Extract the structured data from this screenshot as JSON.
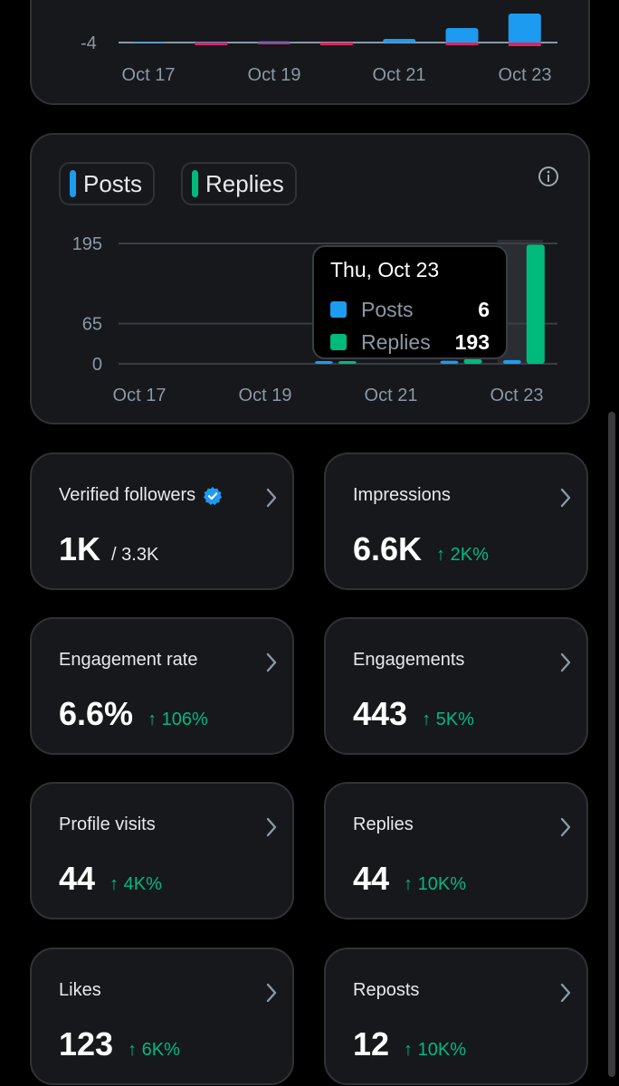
{
  "top_chart": {
    "y_tick": "-4",
    "x_labels": [
      "Oct 17",
      "Oct 19",
      "Oct 21",
      "Oct 23"
    ]
  },
  "activity_chart": {
    "legend": [
      {
        "label": "Posts",
        "color": "#1d9bf0"
      },
      {
        "label": "Replies",
        "color": "#00ba7c"
      }
    ],
    "info_icon": "info-icon",
    "tooltip": {
      "date": "Thu, Oct 23",
      "rows": [
        {
          "label": "Posts",
          "value": "6",
          "color": "#1d9bf0"
        },
        {
          "label": "Replies",
          "value": "193",
          "color": "#00ba7c"
        }
      ]
    }
  },
  "chart_data": [
    {
      "type": "bar",
      "categories": [
        "Oct 17",
        "Oct 18",
        "Oct 19",
        "Oct 20",
        "Oct 21",
        "Oct 22",
        "Oct 23"
      ],
      "series": [
        {
          "values": [
            0.2,
            0.2,
            0.3,
            0,
            1,
            4,
            8
          ],
          "color": "#1d9bf0"
        },
        {
          "values": [
            0,
            -0.3,
            -0.2,
            -0.3,
            0,
            -0.3,
            -0.4
          ],
          "color": "#e0245e"
        }
      ],
      "y_ticks": [
        -4
      ],
      "x_tick_labels": [
        "Oct 17",
        "Oct 19",
        "Oct 21",
        "Oct 23"
      ]
    },
    {
      "type": "bar",
      "categories": [
        "Oct 17",
        "Oct 18",
        "Oct 19",
        "Oct 20",
        "Oct 21",
        "Oct 22",
        "Oct 23"
      ],
      "series": [
        {
          "name": "Posts",
          "values": [
            0,
            0,
            0,
            1,
            0,
            5,
            6
          ],
          "color": "#1d9bf0"
        },
        {
          "name": "Replies",
          "values": [
            0,
            0,
            0,
            1,
            0,
            8,
            193
          ],
          "color": "#00ba7c"
        }
      ],
      "y_ticks": [
        0,
        65,
        195
      ],
      "ylim": [
        0,
        195
      ],
      "x_tick_labels": [
        "Oct 17",
        "Oct 19",
        "Oct 21",
        "Oct 23"
      ],
      "highlighted_category": "Oct 23"
    }
  ],
  "metrics": [
    {
      "title": "Verified followers",
      "verified_badge": true,
      "value": "1K",
      "sub": "/ 3.3K",
      "delta": ""
    },
    {
      "title": "Impressions",
      "value": "6.6K",
      "sub": "",
      "delta": "↑ 2K%"
    },
    {
      "title": "Engagement rate",
      "value": "6.6%",
      "sub": "",
      "delta": "↑ 106%"
    },
    {
      "title": "Engagements",
      "value": "443",
      "sub": "",
      "delta": "↑ 5K%"
    },
    {
      "title": "Profile visits",
      "value": "44",
      "sub": "",
      "delta": "↑ 4K%"
    },
    {
      "title": "Replies",
      "value": "44",
      "sub": "",
      "delta": "↑ 10K%"
    },
    {
      "title": "Likes",
      "value": "123",
      "sub": "",
      "delta": "↑ 6K%"
    },
    {
      "title": "Reposts",
      "value": "12",
      "sub": "",
      "delta": "↑ 10K%"
    }
  ],
  "colors": {
    "positive": "#00ba7c",
    "posts": "#1d9bf0",
    "replies": "#00ba7c",
    "negative": "#e0245e",
    "verified": "#1d9bf0"
  }
}
